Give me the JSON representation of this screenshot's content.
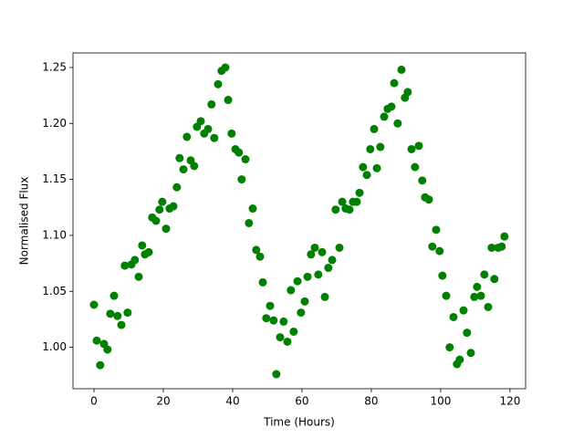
{
  "chart_data": {
    "type": "scatter",
    "xlabel": "Time (Hours)",
    "ylabel": "Normalised Flux",
    "color": "#008000",
    "x": [
      0,
      0.8,
      1.8,
      2.9,
      3.9,
      4.7,
      5.8,
      6.8,
      7.9,
      8.9,
      9.7,
      10.8,
      11.8,
      12.9,
      13.9,
      14.7,
      15.8,
      16.8,
      17.9,
      18.9,
      19.7,
      20.8,
      21.8,
      22.9,
      23.9,
      24.7,
      25.8,
      26.8,
      27.9,
      28.9,
      29.7,
      30.8,
      31.8,
      32.9,
      33.9,
      34.7,
      35.8,
      36.8,
      37.9,
      38.7,
      39.7,
      40.8,
      41.8,
      42.6,
      43.7,
      44.7,
      45.8,
      46.8,
      47.9,
      48.7,
      49.7,
      50.8,
      51.8,
      52.6,
      53.7,
      54.7,
      55.8,
      56.8,
      57.6,
      58.7,
      59.7,
      60.8,
      61.6,
      62.6,
      63.7,
      64.7,
      65.8,
      66.6,
      67.6,
      68.7,
      69.7,
      70.8,
      71.6,
      72.6,
      73.7,
      74.7,
      75.8,
      76.6,
      77.6,
      78.7,
      79.7,
      80.8,
      81.6,
      82.6,
      83.7,
      84.7,
      85.8,
      86.6,
      87.6,
      88.7,
      89.7,
      90.5,
      91.6,
      92.6,
      93.7,
      94.7,
      95.5,
      96.6,
      97.6,
      98.7,
      99.7,
      100.5,
      101.6,
      102.6,
      103.7,
      104.7,
      105.5,
      106.6,
      107.6,
      108.7,
      109.7,
      110.5,
      111.6,
      112.6,
      113.7,
      114.7,
      115.5,
      116.6,
      117.6,
      118.4
    ],
    "values": [
      1.038,
      1.006,
      0.984,
      1.003,
      0.998,
      1.03,
      1.046,
      1.028,
      1.02,
      1.073,
      1.031,
      1.074,
      1.078,
      1.063,
      1.091,
      1.083,
      1.085,
      1.116,
      1.113,
      1.123,
      1.13,
      1.106,
      1.124,
      1.126,
      1.143,
      1.169,
      1.159,
      1.188,
      1.167,
      1.162,
      1.197,
      1.202,
      1.191,
      1.195,
      1.217,
      1.187,
      1.235,
      1.247,
      1.25,
      1.221,
      1.191,
      1.177,
      1.174,
      1.15,
      1.168,
      1.111,
      1.124,
      1.087,
      1.081,
      1.058,
      1.026,
      1.037,
      1.024,
      0.976,
      1.009,
      1.023,
      1.005,
      1.051,
      1.014,
      1.059,
      1.031,
      1.041,
      1.063,
      1.083,
      1.089,
      1.065,
      1.085,
      1.045,
      1.071,
      1.078,
      1.123,
      1.089,
      1.13,
      1.124,
      1.123,
      1.13,
      1.13,
      1.138,
      1.161,
      1.154,
      1.177,
      1.195,
      1.16,
      1.179,
      1.206,
      1.213,
      1.215,
      1.236,
      1.2,
      1.248,
      1.223,
      1.228,
      1.177,
      1.161,
      1.18,
      1.149,
      1.134,
      1.132,
      1.09,
      1.105,
      1.086,
      1.064,
      1.046,
      1.0,
      1.027,
      0.985,
      0.989,
      1.033,
      1.013,
      0.995,
      1.045,
      1.054,
      1.046,
      1.065,
      1.036,
      1.089,
      1.061,
      1.089,
      1.09,
      1.099
    ],
    "xlim": [
      -6.05,
      124.5
    ],
    "xticks": [
      0,
      20,
      40,
      60,
      80,
      100,
      120
    ],
    "ylim": [
      0.963,
      1.263
    ],
    "yticks": [
      {
        "value": 1.0,
        "label": "1.00"
      },
      {
        "value": 1.05,
        "label": "1.05"
      },
      {
        "value": 1.1,
        "label": "1.10"
      },
      {
        "value": 1.15,
        "label": "1.15"
      },
      {
        "value": 1.2,
        "label": "1.20"
      },
      {
        "value": 1.25,
        "label": "1.25"
      }
    ]
  }
}
